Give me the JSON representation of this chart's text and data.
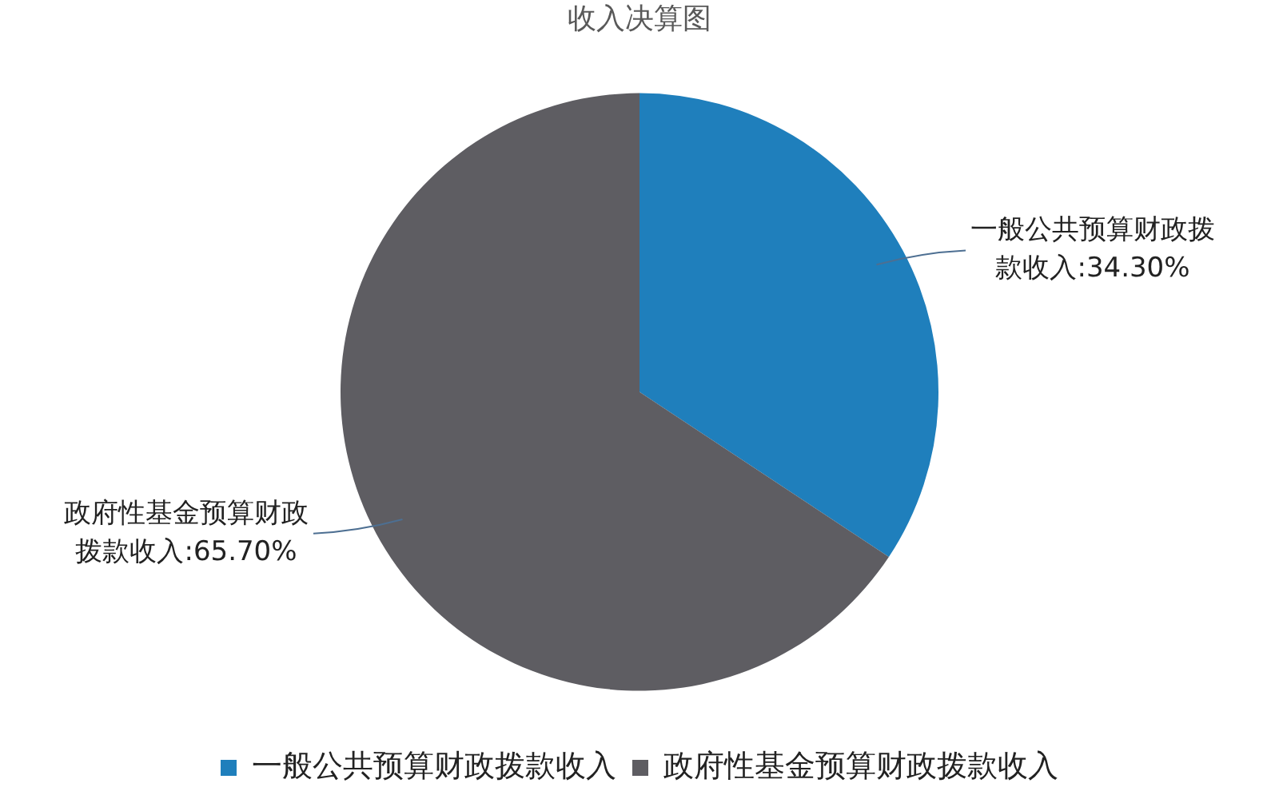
{
  "chart_data": {
    "type": "pie",
    "title": "收入决算图",
    "categories": [
      "一般公共预算财政拨款收入",
      "政府性基金预算财政拨款收入"
    ],
    "values": [
      34.3,
      65.7
    ],
    "colors": [
      "#1f7fbc",
      "#5e5d62"
    ],
    "value_labels": [
      "一般公共预算财政拨款收入:34.30%",
      "政府性基金预算财政拨款收入:65.70%"
    ],
    "legend": "bottom"
  }
}
